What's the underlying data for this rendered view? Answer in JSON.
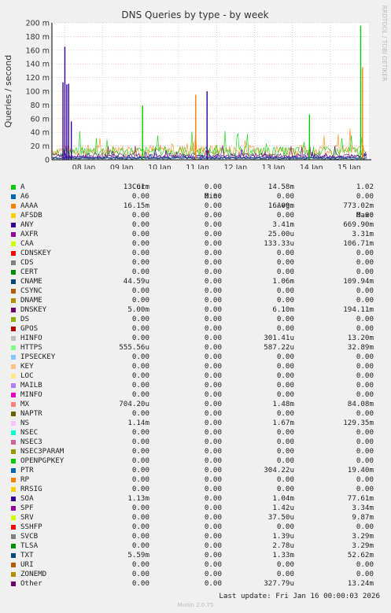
{
  "chart_data": {
    "type": "line",
    "title": "DNS Queries by type - by week",
    "ylabel": "Queries / second",
    "side_label": "RRDTOOL / TOBI OETIKER",
    "y_ticks": [
      "200 m",
      "180 m",
      "160 m",
      "140 m",
      "120 m",
      "100 m",
      "80 m",
      "60 m",
      "40 m",
      "20 m",
      "0"
    ],
    "ylim": [
      0,
      200
    ],
    "y_unit": "m",
    "x_ticks": [
      "08 Jan",
      "09 Jan",
      "10 Jan",
      "11 Jan",
      "12 Jan",
      "13 Jan",
      "14 Jan",
      "15 Jan"
    ],
    "grid": true,
    "spikes": [
      {
        "series": "ANY",
        "day": 7.45,
        "value": 113
      },
      {
        "series": "ANY",
        "day": 7.5,
        "value": 165
      },
      {
        "series": "ANY",
        "day": 7.55,
        "value": 110
      },
      {
        "series": "ANY",
        "day": 7.6,
        "value": 111
      },
      {
        "series": "ANY",
        "day": 7.67,
        "value": 56
      },
      {
        "series": "A",
        "day": 9.55,
        "value": 79
      },
      {
        "series": "AAAA",
        "day": 10.95,
        "value": 95
      },
      {
        "series": "SOA",
        "day": 11.25,
        "value": 100
      },
      {
        "series": "A",
        "day": 13.95,
        "value": 66
      },
      {
        "series": "A",
        "day": 15.3,
        "value": 196
      },
      {
        "series": "AAAA",
        "day": 15.35,
        "value": 135
      }
    ]
  },
  "legend": {
    "headers": {
      "cur": "Cur:",
      "min": "Min:",
      "avg": "Avg:",
      "max": "Max:"
    },
    "rows": [
      {
        "name": "A",
        "color": "#00cc00",
        "cur": "13.61m",
        "min": "0.00",
        "avg": "14.58m",
        "max": "1.02"
      },
      {
        "name": "A6",
        "color": "#0066b3",
        "cur": "0.00",
        "min": "0.00",
        "avg": "0.00",
        "max": "0.00"
      },
      {
        "name": "AAAA",
        "color": "#ff8000",
        "cur": "16.15m",
        "min": "0.00",
        "avg": "16.09m",
        "max": "773.02m"
      },
      {
        "name": "AFSDB",
        "color": "#ffcc00",
        "cur": "0.00",
        "min": "0.00",
        "avg": "0.00",
        "max": "0.00"
      },
      {
        "name": "ANY",
        "color": "#330099",
        "cur": "0.00",
        "min": "0.00",
        "avg": "3.41m",
        "max": "669.90m"
      },
      {
        "name": "AXFR",
        "color": "#990099",
        "cur": "0.00",
        "min": "0.00",
        "avg": "25.00u",
        "max": "3.31m"
      },
      {
        "name": "CAA",
        "color": "#ccff00",
        "cur": "0.00",
        "min": "0.00",
        "avg": "133.33u",
        "max": "106.71m"
      },
      {
        "name": "CDNSKEY",
        "color": "#ff0000",
        "cur": "0.00",
        "min": "0.00",
        "avg": "0.00",
        "max": "0.00"
      },
      {
        "name": "CDS",
        "color": "#808080",
        "cur": "0.00",
        "min": "0.00",
        "avg": "0.00",
        "max": "0.00"
      },
      {
        "name": "CERT",
        "color": "#008f00",
        "cur": "0.00",
        "min": "0.00",
        "avg": "0.00",
        "max": "0.00"
      },
      {
        "name": "CNAME",
        "color": "#00487d",
        "cur": "44.59u",
        "min": "0.00",
        "avg": "1.06m",
        "max": "109.94m"
      },
      {
        "name": "CSYNC",
        "color": "#b35a00",
        "cur": "0.00",
        "min": "0.00",
        "avg": "0.00",
        "max": "0.00"
      },
      {
        "name": "DNAME",
        "color": "#b38f00",
        "cur": "0.00",
        "min": "0.00",
        "avg": "0.00",
        "max": "0.00"
      },
      {
        "name": "DNSKEY",
        "color": "#6b006b",
        "cur": "5.00m",
        "min": "0.00",
        "avg": "6.10m",
        "max": "194.11m"
      },
      {
        "name": "DS",
        "color": "#8fb300",
        "cur": "0.00",
        "min": "0.00",
        "avg": "0.00",
        "max": "0.00"
      },
      {
        "name": "GPOS",
        "color": "#b30000",
        "cur": "0.00",
        "min": "0.00",
        "avg": "0.00",
        "max": "0.00"
      },
      {
        "name": "HINFO",
        "color": "#bebebe",
        "cur": "0.00",
        "min": "0.00",
        "avg": "301.41u",
        "max": "13.20m"
      },
      {
        "name": "HTTPS",
        "color": "#80ff80",
        "cur": "555.56u",
        "min": "0.00",
        "avg": "587.22u",
        "max": "32.89m"
      },
      {
        "name": "IPSECKEY",
        "color": "#80c9ff",
        "cur": "0.00",
        "min": "0.00",
        "avg": "0.00",
        "max": "0.00"
      },
      {
        "name": "KEY",
        "color": "#ffc080",
        "cur": "0.00",
        "min": "0.00",
        "avg": "0.00",
        "max": "0.00"
      },
      {
        "name": "LOC",
        "color": "#ffe680",
        "cur": "0.00",
        "min": "0.00",
        "avg": "0.00",
        "max": "0.00"
      },
      {
        "name": "MAILB",
        "color": "#aa80ff",
        "cur": "0.00",
        "min": "0.00",
        "avg": "0.00",
        "max": "0.00"
      },
      {
        "name": "MINFO",
        "color": "#ee00cc",
        "cur": "0.00",
        "min": "0.00",
        "avg": "0.00",
        "max": "0.00"
      },
      {
        "name": "MX",
        "color": "#ff8080",
        "cur": "704.20u",
        "min": "0.00",
        "avg": "1.48m",
        "max": "84.08m"
      },
      {
        "name": "NAPTR",
        "color": "#666600",
        "cur": "0.00",
        "min": "0.00",
        "avg": "0.00",
        "max": "0.00"
      },
      {
        "name": "NS",
        "color": "#ffbfff",
        "cur": "1.14m",
        "min": "0.00",
        "avg": "1.67m",
        "max": "129.35m"
      },
      {
        "name": "NSEC",
        "color": "#00ffcc",
        "cur": "0.00",
        "min": "0.00",
        "avg": "0.00",
        "max": "0.00"
      },
      {
        "name": "NSEC3",
        "color": "#cc6699",
        "cur": "0.00",
        "min": "0.00",
        "avg": "0.00",
        "max": "0.00"
      },
      {
        "name": "NSEC3PARAM",
        "color": "#999900",
        "cur": "0.00",
        "min": "0.00",
        "avg": "0.00",
        "max": "0.00"
      },
      {
        "name": "OPENPGPKEY",
        "color": "#00cc00",
        "cur": "0.00",
        "min": "0.00",
        "avg": "0.00",
        "max": "0.00"
      },
      {
        "name": "PTR",
        "color": "#0066b3",
        "cur": "0.00",
        "min": "0.00",
        "avg": "304.22u",
        "max": "19.40m"
      },
      {
        "name": "RP",
        "color": "#ff8000",
        "cur": "0.00",
        "min": "0.00",
        "avg": "0.00",
        "max": "0.00"
      },
      {
        "name": "RRSIG",
        "color": "#ffcc00",
        "cur": "0.00",
        "min": "0.00",
        "avg": "0.00",
        "max": "0.00"
      },
      {
        "name": "SOA",
        "color": "#330099",
        "cur": "1.13m",
        "min": "0.00",
        "avg": "1.04m",
        "max": "77.61m"
      },
      {
        "name": "SPF",
        "color": "#990099",
        "cur": "0.00",
        "min": "0.00",
        "avg": "1.42u",
        "max": "3.34m"
      },
      {
        "name": "SRV",
        "color": "#ccff00",
        "cur": "0.00",
        "min": "0.00",
        "avg": "37.50u",
        "max": "9.87m"
      },
      {
        "name": "SSHFP",
        "color": "#ff0000",
        "cur": "0.00",
        "min": "0.00",
        "avg": "0.00",
        "max": "0.00"
      },
      {
        "name": "SVCB",
        "color": "#808080",
        "cur": "0.00",
        "min": "0.00",
        "avg": "1.39u",
        "max": "3.29m"
      },
      {
        "name": "TLSA",
        "color": "#008f00",
        "cur": "0.00",
        "min": "0.00",
        "avg": "2.78u",
        "max": "3.29m"
      },
      {
        "name": "TXT",
        "color": "#00487d",
        "cur": "5.59m",
        "min": "0.00",
        "avg": "1.33m",
        "max": "52.62m"
      },
      {
        "name": "URI",
        "color": "#b35a00",
        "cur": "0.00",
        "min": "0.00",
        "avg": "0.00",
        "max": "0.00"
      },
      {
        "name": "ZONEMD",
        "color": "#b38f00",
        "cur": "0.00",
        "min": "0.00",
        "avg": "0.00",
        "max": "0.00"
      },
      {
        "name": "Other",
        "color": "#6b006b",
        "cur": "0.00",
        "min": "0.00",
        "avg": "327.79u",
        "max": "13.24m"
      }
    ]
  },
  "footer": {
    "last_update": "Last update: Fri Jan 16 00:00:03 2026",
    "version": "Munin 2.0.75"
  }
}
